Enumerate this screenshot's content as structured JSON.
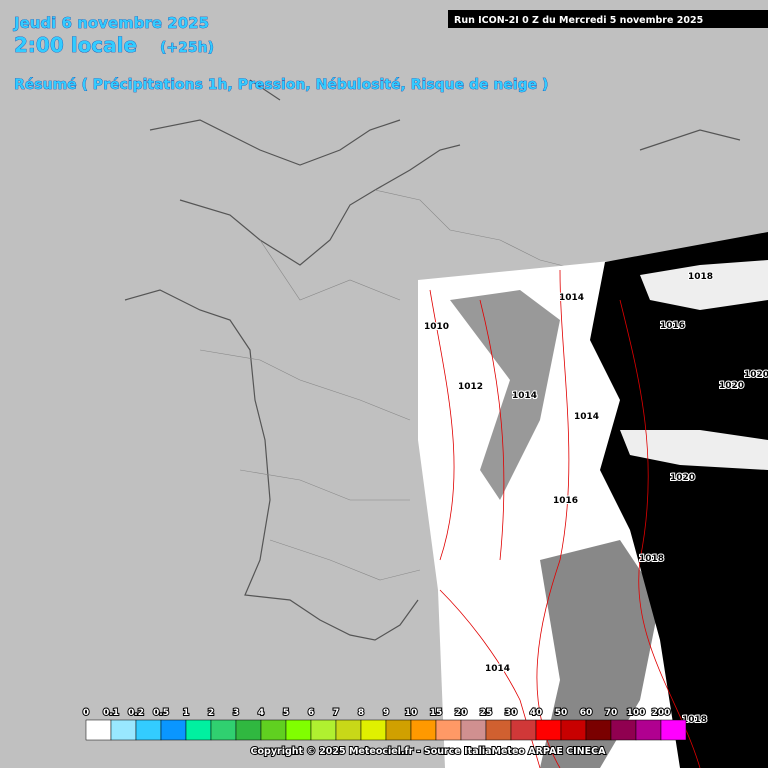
{
  "header": {
    "date": "Jeudi 6 novembre 2025",
    "time": "2:00 locale",
    "offset": "(+25h)",
    "summary": "Résumé ( Précipitations 1h,  Pression, Nébulosité, Risque de neige )",
    "run": "Run ICON-2I 0 Z du Mercredi 5 novembre 2025"
  },
  "isobars": [
    "1018",
    "1014",
    "1016",
    "1010",
    "1012",
    "1014",
    "1020",
    "1020",
    "1014",
    "1020",
    "1016",
    "1018",
    "1014",
    "1018"
  ],
  "legend": {
    "items": [
      {
        "label": "0",
        "color": "#ffffff"
      },
      {
        "label": "0.1",
        "color": "#99e8ff"
      },
      {
        "label": "0.2",
        "color": "#33ccff"
      },
      {
        "label": "0.5",
        "color": "#0a96ff"
      },
      {
        "label": "1",
        "color": "#00f0a0"
      },
      {
        "label": "2",
        "color": "#30d070"
      },
      {
        "label": "3",
        "color": "#30b840"
      },
      {
        "label": "4",
        "color": "#60d020"
      },
      {
        "label": "5",
        "color": "#80ff00"
      },
      {
        "label": "6",
        "color": "#b0f030"
      },
      {
        "label": "7",
        "color": "#c8d818"
      },
      {
        "label": "8",
        "color": "#e0f000"
      },
      {
        "label": "9",
        "color": "#d0a000"
      },
      {
        "label": "10",
        "color": "#ff9900"
      },
      {
        "label": "15",
        "color": "#ff9966"
      },
      {
        "label": "20",
        "color": "#d09090"
      },
      {
        "label": "25",
        "color": "#d06030"
      },
      {
        "label": "30",
        "color": "#d03838"
      },
      {
        "label": "40",
        "color": "#ff0000"
      },
      {
        "label": "50",
        "color": "#c80000"
      },
      {
        "label": "60",
        "color": "#7a0000"
      },
      {
        "label": "70",
        "color": "#900050"
      },
      {
        "label": "100",
        "color": "#b00090"
      },
      {
        "label": "200",
        "color": "#ff00ff"
      }
    ]
  },
  "footer": {
    "copyright": "Copyright © 2025 Meteociel.fr - Source ItaliaMeteo ARPAE CINECA"
  }
}
